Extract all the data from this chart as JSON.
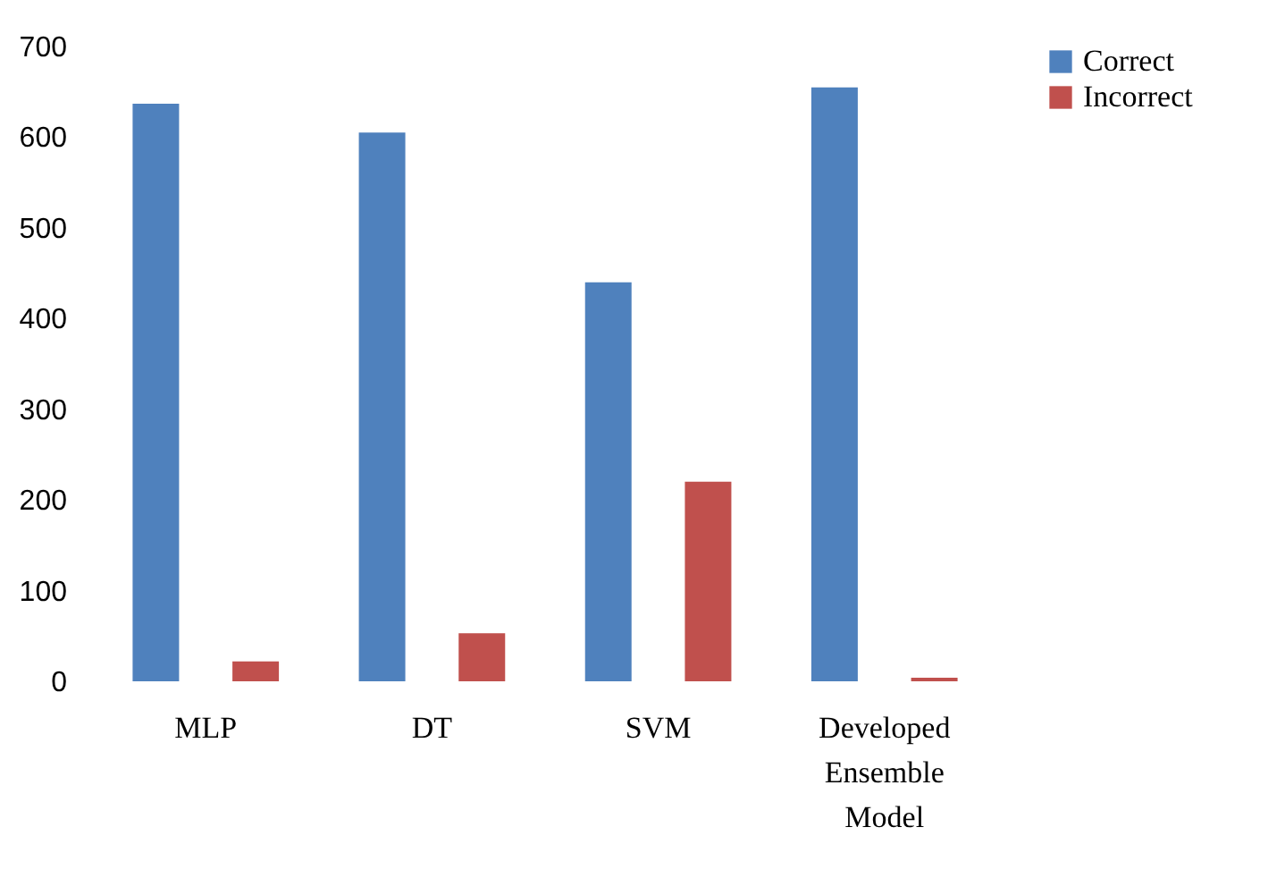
{
  "chart_data": {
    "type": "bar",
    "categories": [
      "MLP",
      "DT",
      "SVM",
      "Developed Ensemble Model"
    ],
    "series": [
      {
        "name": "Correct",
        "color": "#4f81bd",
        "values": [
          637,
          605,
          440,
          655
        ]
      },
      {
        "name": "Incorrect",
        "color": "#c0504d",
        "values": [
          22,
          53,
          220,
          4
        ]
      }
    ],
    "ylim": [
      0,
      700
    ],
    "yticks": [
      0,
      100,
      200,
      300,
      400,
      500,
      600,
      700
    ],
    "grid": false,
    "legend": "right"
  }
}
